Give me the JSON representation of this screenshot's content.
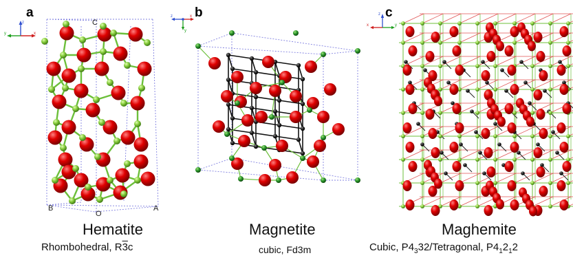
{
  "panels": [
    {
      "letter": "a",
      "axes": {
        "x": "x",
        "y": "y",
        "z": "z"
      },
      "corners": {
        "top": "C",
        "bottom_left": "B",
        "bottom_mid": "O",
        "bottom_right": "A"
      },
      "name": "Hematite",
      "system": "Rhombohedral,",
      "group_prefix": "R",
      "group_bar": "3",
      "group_suffix": "c"
    },
    {
      "letter": "b",
      "axes": {
        "x": "x",
        "y": "y",
        "z": "z"
      },
      "name": "Magnetite",
      "system": "cubic, Fd3m"
    },
    {
      "letter": "c",
      "axes": {
        "x": "x",
        "y": "y",
        "z": "z"
      },
      "name": "Maghemite",
      "system_a": "Cubic, P4",
      "system_sub1": "3",
      "system_b": "32/Tetragonal, P4",
      "system_sub2": "1",
      "system_c": "2",
      "system_sub3": "1",
      "system_d": "2"
    }
  ],
  "colors": {
    "oxygen": "#d40000",
    "iron_green": "#7ac142",
    "iron_black": "#111111",
    "cell_edge": "#8080e0",
    "bond_green": "#6cbf3a",
    "bond_red": "#e05050"
  }
}
